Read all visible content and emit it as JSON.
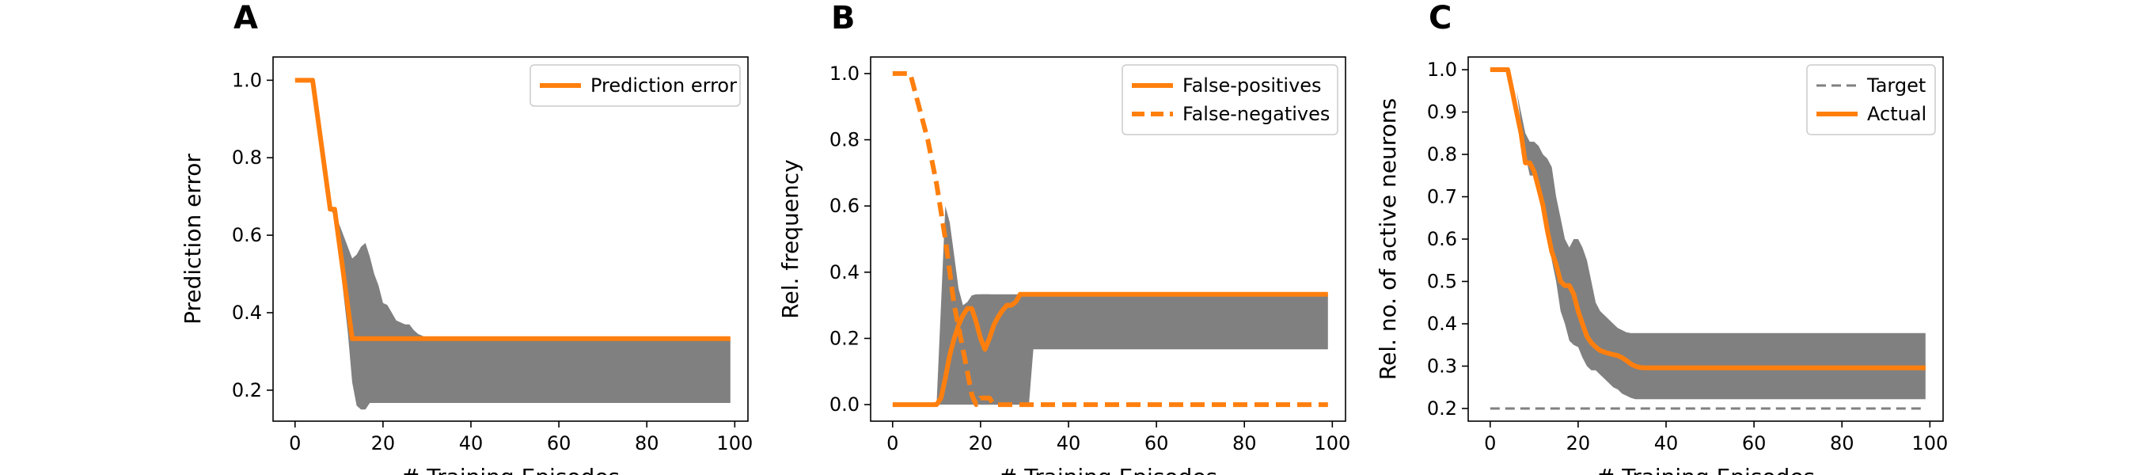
{
  "chart_data": [
    {
      "type": "line",
      "panel": "A",
      "xlabel": "# Training Episodes",
      "ylabel": "Prediction error",
      "xlim": [
        -5,
        103
      ],
      "ylim": [
        0.12,
        1.06
      ],
      "xticks": [
        0,
        20,
        40,
        60,
        80,
        100
      ],
      "yticks": [
        0.2,
        0.4,
        0.6,
        0.8,
        1.0
      ],
      "xtick_labels": [
        "0",
        "20",
        "40",
        "60",
        "80",
        "100"
      ],
      "ytick_labels": [
        "0.2",
        "0.4",
        "0.6",
        "0.8",
        "1.0"
      ],
      "legend_position": "top-right",
      "band_color": "#808080",
      "band": {
        "x": [
          8,
          9,
          10,
          11,
          12,
          13,
          14,
          15,
          16,
          17,
          18,
          19,
          20,
          21,
          22,
          23,
          24,
          25,
          26,
          27,
          28,
          29,
          30,
          31,
          32,
          34,
          40,
          60,
          80,
          99
        ],
        "upper": [
          0.667,
          0.66,
          0.63,
          0.6,
          0.57,
          0.54,
          0.55,
          0.57,
          0.58,
          0.545,
          0.5,
          0.47,
          0.425,
          0.42,
          0.4,
          0.38,
          0.375,
          0.37,
          0.37,
          0.355,
          0.345,
          0.34,
          0.333,
          0.333,
          0.333,
          0.333,
          0.333,
          0.333,
          0.333,
          0.333
        ],
        "lower": [
          0.667,
          0.65,
          0.55,
          0.45,
          0.35,
          0.22,
          0.16,
          0.15,
          0.15,
          0.167,
          0.167,
          0.167,
          0.167,
          0.167,
          0.167,
          0.167,
          0.167,
          0.167,
          0.167,
          0.167,
          0.167,
          0.167,
          0.167,
          0.167,
          0.167,
          0.167,
          0.167,
          0.167,
          0.167,
          0.167
        ]
      },
      "series": [
        {
          "name": "Prediction error",
          "color": "#ff7f0e",
          "dash": "solid",
          "x": [
            0,
            4,
            8,
            9,
            13,
            20,
            40,
            60,
            80,
            99
          ],
          "y": [
            1.0,
            1.0,
            0.667,
            0.667,
            0.333,
            0.333,
            0.333,
            0.333,
            0.333,
            0.333
          ]
        }
      ]
    },
    {
      "type": "line",
      "panel": "B",
      "xlabel": "# Training Episodes",
      "ylabel": "Rel. frequency",
      "xlim": [
        -5,
        103
      ],
      "ylim": [
        -0.05,
        1.05
      ],
      "xticks": [
        0,
        20,
        40,
        60,
        80,
        100
      ],
      "yticks": [
        0.0,
        0.2,
        0.4,
        0.6,
        0.8,
        1.0
      ],
      "xtick_labels": [
        "0",
        "20",
        "40",
        "60",
        "80",
        "100"
      ],
      "ytick_labels": [
        "0.0",
        "0.2",
        "0.4",
        "0.6",
        "0.8",
        "1.0"
      ],
      "legend_position": "top-right",
      "band_color": "#808080",
      "bands": [
        {
          "x": [
            10,
            11,
            12,
            13,
            14,
            15,
            16,
            17,
            18,
            19,
            20,
            22,
            24,
            26,
            27,
            28,
            29,
            30,
            31,
            32,
            40,
            60,
            80,
            99
          ],
          "upper": [
            0.0,
            0.3,
            0.6,
            0.55,
            0.45,
            0.35,
            0.3,
            0.31,
            0.33,
            0.333,
            0.333,
            0.333,
            0.333,
            0.333,
            0.333,
            0.333,
            0.333,
            0.333,
            0.333,
            0.333,
            0.333,
            0.333,
            0.333,
            0.333
          ],
          "lower": [
            0.0,
            0.0,
            0.0,
            0.0,
            0.0,
            0.0,
            0.0,
            0.0,
            0.0,
            0.0,
            0.0,
            0.0,
            0.0,
            0.0,
            0.0,
            0.0,
            0.0,
            0.0,
            0.0,
            0.167,
            0.167,
            0.167,
            0.167,
            0.167
          ]
        },
        {
          "x": [
            20,
            22,
            24,
            25,
            26,
            27,
            28,
            29,
            30,
            31,
            32
          ],
          "upper": [
            0.333,
            0.333,
            0.3,
            0.16,
            0.13,
            0.11,
            0.08,
            0.06,
            0.03,
            0.0,
            0.0
          ],
          "lower": [
            0.0,
            0.0,
            0.0,
            0.0,
            0.0,
            0.0,
            0.0,
            0.0,
            0.0,
            0.0,
            0.0
          ]
        }
      ],
      "series": [
        {
          "name": "False-positives",
          "color": "#ff7f0e",
          "dash": "solid",
          "x": [
            0,
            10,
            11,
            12,
            13,
            14,
            15,
            16,
            17,
            18,
            19,
            20,
            21,
            22,
            23,
            24,
            25,
            26,
            27,
            28,
            29,
            30,
            40,
            60,
            80,
            99
          ],
          "y": [
            0.0,
            0.0,
            0.02,
            0.08,
            0.15,
            0.2,
            0.24,
            0.27,
            0.29,
            0.29,
            0.25,
            0.2,
            0.167,
            0.2,
            0.24,
            0.265,
            0.285,
            0.3,
            0.3,
            0.31,
            0.333,
            0.333,
            0.333,
            0.333,
            0.333,
            0.333
          ]
        },
        {
          "name": "False-negatives",
          "color": "#ff7f0e",
          "dash": "dashed",
          "x": [
            0,
            4,
            8,
            10,
            12,
            14,
            16,
            18,
            19,
            20,
            22,
            23,
            24,
            30,
            40,
            60,
            80,
            99
          ],
          "y": [
            1.0,
            1.0,
            0.8,
            0.667,
            0.5,
            0.3,
            0.167,
            0.03,
            0.0,
            0.02,
            0.02,
            0.0,
            0.0,
            0.0,
            0.0,
            0.0,
            0.0,
            0.0
          ]
        }
      ]
    },
    {
      "type": "line",
      "panel": "C",
      "xlabel": "# Training Episodes",
      "ylabel": "Rel. no. of active neurons",
      "xlim": [
        -5,
        103
      ],
      "ylim": [
        0.17,
        1.03
      ],
      "xticks": [
        0,
        20,
        40,
        60,
        80,
        100
      ],
      "yticks": [
        0.2,
        0.3,
        0.4,
        0.5,
        0.6,
        0.7,
        0.8,
        0.9,
        1.0
      ],
      "xtick_labels": [
        "0",
        "20",
        "40",
        "60",
        "80",
        "100"
      ],
      "ytick_labels": [
        "0.2",
        "0.3",
        "0.4",
        "0.5",
        "0.6",
        "0.7",
        "0.8",
        "0.9",
        "1.0"
      ],
      "legend_position": "top-right",
      "band_color": "#808080",
      "band": {
        "x": [
          4,
          6,
          8,
          9,
          10,
          11,
          12,
          13,
          14,
          15,
          16,
          17,
          18,
          19,
          20,
          21,
          22,
          23,
          24,
          25,
          26,
          27,
          28,
          29,
          30,
          31,
          32,
          33,
          34,
          35,
          36,
          40,
          60,
          80,
          99
        ],
        "upper": [
          1.0,
          0.95,
          0.85,
          0.83,
          0.83,
          0.82,
          0.8,
          0.79,
          0.77,
          0.7,
          0.65,
          0.6,
          0.58,
          0.6,
          0.6,
          0.58,
          0.55,
          0.5,
          0.45,
          0.43,
          0.42,
          0.41,
          0.4,
          0.39,
          0.385,
          0.38,
          0.378,
          0.378,
          0.378,
          0.378,
          0.378,
          0.378,
          0.378,
          0.378,
          0.378
        ],
        "lower": [
          1.0,
          0.95,
          0.8,
          0.75,
          0.75,
          0.7,
          0.68,
          0.62,
          0.55,
          0.5,
          0.43,
          0.4,
          0.36,
          0.35,
          0.345,
          0.32,
          0.3,
          0.29,
          0.29,
          0.28,
          0.27,
          0.26,
          0.25,
          0.245,
          0.235,
          0.23,
          0.225,
          0.222,
          0.222,
          0.222,
          0.222,
          0.222,
          0.222,
          0.222,
          0.222
        ]
      },
      "series": [
        {
          "name": "Target",
          "color": "#808080",
          "dash": "dashed",
          "x": [
            0,
            99
          ],
          "y": [
            0.2,
            0.2
          ]
        },
        {
          "name": "Actual",
          "color": "#ff7f0e",
          "dash": "solid",
          "x": [
            0,
            4,
            5,
            6,
            7,
            8,
            9,
            10,
            11,
            12,
            13,
            14,
            15,
            16,
            17,
            18,
            19,
            20,
            21,
            22,
            23,
            24,
            25,
            26,
            27,
            28,
            29,
            30,
            31,
            32,
            33,
            34,
            35,
            36,
            40,
            60,
            80,
            99
          ],
          "y": [
            1.0,
            1.0,
            0.95,
            0.9,
            0.85,
            0.78,
            0.78,
            0.76,
            0.72,
            0.68,
            0.62,
            0.57,
            0.54,
            0.5,
            0.49,
            0.49,
            0.47,
            0.43,
            0.4,
            0.37,
            0.355,
            0.345,
            0.337,
            0.333,
            0.33,
            0.327,
            0.325,
            0.32,
            0.313,
            0.305,
            0.3,
            0.297,
            0.296,
            0.296,
            0.296,
            0.296,
            0.296,
            0.296
          ]
        }
      ]
    }
  ]
}
